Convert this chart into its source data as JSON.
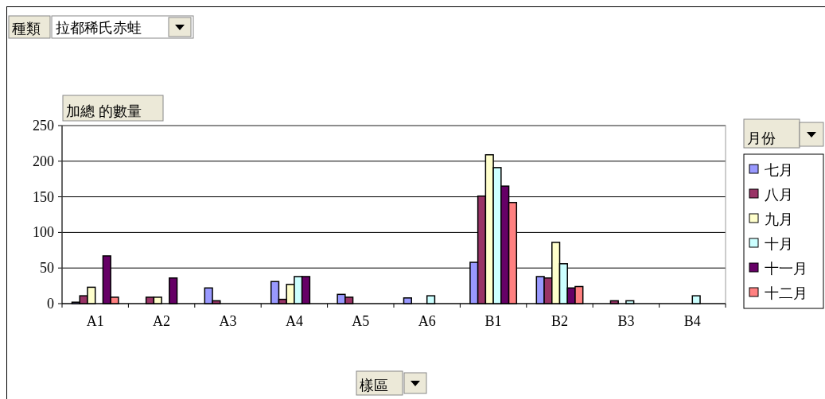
{
  "chart_data": {
    "type": "bar",
    "annotations": [
      "種類",
      "拉都稀氏赤蛙"
    ],
    "ylabel": "加總 的數量",
    "xlabel": "樣區",
    "legend_title": "月份",
    "categories": [
      "A1",
      "A2",
      "A3",
      "A4",
      "A5",
      "A6",
      "B1",
      "B2",
      "B3",
      "B4"
    ],
    "series": [
      {
        "name": "七月",
        "color": "#9999ff",
        "values": [
          2,
          null,
          22,
          31,
          13,
          8,
          58,
          38,
          null,
          null
        ]
      },
      {
        "name": "八月",
        "color": "#993366",
        "values": [
          11,
          9,
          4,
          6,
          9,
          null,
          151,
          36,
          4,
          null
        ]
      },
      {
        "name": "九月",
        "color": "#ffffcc",
        "values": [
          23,
          9,
          null,
          27,
          null,
          null,
          209,
          86,
          null,
          null
        ]
      },
      {
        "name": "十月",
        "color": "#ccffff",
        "values": [
          null,
          null,
          null,
          38,
          null,
          11,
          191,
          56,
          4,
          11
        ]
      },
      {
        "name": "十一月",
        "color": "#660066",
        "values": [
          67,
          36,
          null,
          38,
          null,
          null,
          165,
          22,
          null,
          null
        ]
      },
      {
        "name": "十二月",
        "color": "#ff8080",
        "values": [
          9,
          null,
          null,
          null,
          null,
          null,
          142,
          24,
          null,
          null
        ]
      }
    ],
    "ylim": [
      0,
      250
    ],
    "yticks": [
      0,
      50,
      100,
      150,
      200,
      250
    ],
    "grid": "y",
    "legend": "right"
  }
}
